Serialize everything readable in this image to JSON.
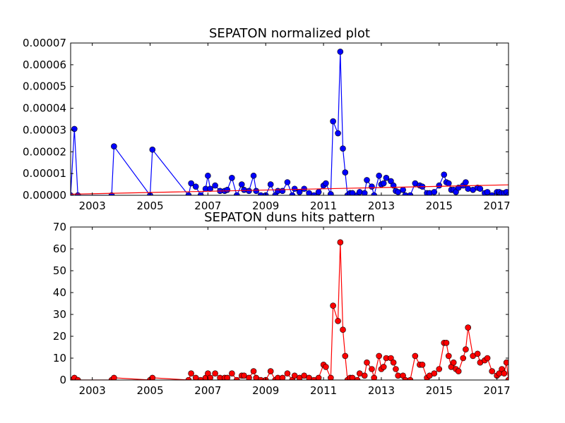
{
  "chart_data": [
    {
      "type": "line",
      "title": "SEPATON normalized plot",
      "xlabel": "",
      "ylabel": "",
      "xlim": [
        2002.25,
        2017.4
      ],
      "ylim": [
        0,
        7e-05
      ],
      "xticks": [
        2003,
        2005,
        2007,
        2009,
        2011,
        2013,
        2015,
        2017
      ],
      "xtick_labels": [
        "2003",
        "2005",
        "2007",
        "2009",
        "2011",
        "2013",
        "2015",
        "2017"
      ],
      "yticks": [
        0,
        1e-05,
        2e-05,
        3e-05,
        4e-05,
        5e-05,
        6e-05,
        7e-05
      ],
      "ytick_labels": [
        "0.00000",
        "0.00001",
        "0.00002",
        "0.00003",
        "0.00004",
        "0.00005",
        "0.00006",
        "0.00007"
      ],
      "grid": false,
      "legend": "none",
      "series": [
        {
          "color": "#0000ff",
          "marker": "circle",
          "x": [
            2002.25,
            2002.38,
            2002.5,
            2003.67,
            2003.75,
            2005.0,
            2005.08,
            2006.33,
            2006.42,
            2006.58,
            2006.75,
            2006.92,
            2007.0,
            2007.08,
            2007.25,
            2007.42,
            2007.58,
            2007.67,
            2007.83,
            2008.0,
            2008.17,
            2008.25,
            2008.42,
            2008.58,
            2008.67,
            2008.83,
            2009.0,
            2009.17,
            2009.33,
            2009.42,
            2009.58,
            2009.75,
            2009.92,
            2010.0,
            2010.17,
            2010.33,
            2010.5,
            2010.67,
            2010.83,
            2011.0,
            2011.08,
            2011.25,
            2011.33,
            2011.5,
            2011.58,
            2011.67,
            2011.75,
            2011.83,
            2011.92,
            2012.0,
            2012.17,
            2012.25,
            2012.42,
            2012.5,
            2012.67,
            2012.75,
            2012.92,
            2013.0,
            2013.08,
            2013.17,
            2013.33,
            2013.42,
            2013.5,
            2013.58,
            2013.75,
            2013.83,
            2014.0,
            2014.17,
            2014.33,
            2014.42,
            2014.58,
            2014.67,
            2014.83,
            2015.0,
            2015.17,
            2015.25,
            2015.33,
            2015.42,
            2015.5,
            2015.58,
            2015.67,
            2015.83,
            2015.92,
            2016.0,
            2016.17,
            2016.33,
            2016.42,
            2016.58,
            2016.67,
            2016.83,
            2017.0,
            2017.08,
            2017.17,
            2017.25,
            2017.33,
            2017.4
          ],
          "y": [
            0,
            3.05e-05,
            0,
            0,
            2.25e-05,
            0,
            2.1e-05,
            0,
            5.5e-06,
            4e-06,
            0,
            3e-06,
            9e-06,
            3e-06,
            4.5e-06,
            2e-06,
            2e-06,
            2.5e-06,
            8e-06,
            0,
            5e-06,
            2.5e-06,
            2e-06,
            9e-06,
            2e-06,
            0,
            0,
            5e-06,
            0,
            2e-06,
            2e-06,
            6e-06,
            0,
            3e-06,
            1.5e-06,
            3e-06,
            1e-06,
            0,
            1.5e-06,
            4.5e-06,
            5.5e-06,
            5e-07,
            3.4e-05,
            2.85e-05,
            6.6e-05,
            2.15e-05,
            1.05e-05,
            0,
            1e-06,
            1e-06,
            0,
            1.5e-06,
            1e-06,
            7e-06,
            4e-06,
            0,
            9e-06,
            5e-06,
            5.5e-06,
            8e-06,
            6.5e-06,
            4.5e-06,
            2e-06,
            1.5e-06,
            2.5e-06,
            0,
            0,
            5.5e-06,
            4.5e-06,
            4e-06,
            1e-06,
            1e-06,
            1.5e-06,
            4.5e-06,
            9.5e-06,
            6e-06,
            5.5e-06,
            2.5e-06,
            2.5e-06,
            1.5e-06,
            3.5e-06,
            4.5e-06,
            6e-06,
            3e-06,
            2.5e-06,
            3.5e-06,
            3e-06,
            1e-06,
            1.5e-06,
            0,
            1.5e-06,
            1.5e-06,
            1e-06,
            1e-06,
            1.5e-06,
            0
          ]
        },
        {
          "color": "#ff0000",
          "marker": "none",
          "x": [
            2002.25,
            2017.4
          ],
          "y": [
            5e-07,
            4.8e-06
          ]
        }
      ]
    },
    {
      "type": "line",
      "title": "SEPATON duns hits pattern",
      "xlabel": "",
      "ylabel": "",
      "xlim": [
        2002.25,
        2017.4
      ],
      "ylim": [
        0,
        70
      ],
      "xticks": [
        2003,
        2005,
        2007,
        2009,
        2011,
        2013,
        2015,
        2017
      ],
      "xtick_labels": [
        "2003",
        "2005",
        "2007",
        "2009",
        "2011",
        "2013",
        "2015",
        "2017"
      ],
      "yticks": [
        0,
        10,
        20,
        30,
        40,
        50,
        60,
        70
      ],
      "ytick_labels": [
        "0",
        "10",
        "20",
        "30",
        "40",
        "50",
        "60",
        "70"
      ],
      "grid": false,
      "legend": "none",
      "series": [
        {
          "color": "#ff0000",
          "marker": "circle",
          "x": [
            2002.25,
            2002.38,
            2002.5,
            2003.67,
            2003.75,
            2005.0,
            2005.08,
            2006.33,
            2006.42,
            2006.58,
            2006.75,
            2006.92,
            2007.0,
            2007.08,
            2007.25,
            2007.42,
            2007.58,
            2007.67,
            2007.83,
            2008.0,
            2008.17,
            2008.25,
            2008.42,
            2008.58,
            2008.67,
            2008.83,
            2009.0,
            2009.17,
            2009.33,
            2009.42,
            2009.58,
            2009.75,
            2009.92,
            2010.0,
            2010.17,
            2010.33,
            2010.5,
            2010.67,
            2010.83,
            2011.0,
            2011.08,
            2011.25,
            2011.33,
            2011.5,
            2011.58,
            2011.67,
            2011.75,
            2011.83,
            2011.92,
            2012.0,
            2012.17,
            2012.25,
            2012.42,
            2012.5,
            2012.67,
            2012.75,
            2012.92,
            2013.0,
            2013.08,
            2013.17,
            2013.33,
            2013.42,
            2013.5,
            2013.58,
            2013.75,
            2013.83,
            2014.0,
            2014.17,
            2014.33,
            2014.42,
            2014.58,
            2014.67,
            2014.83,
            2015.0,
            2015.17,
            2015.25,
            2015.33,
            2015.42,
            2015.5,
            2015.58,
            2015.67,
            2015.83,
            2015.92,
            2016.0,
            2016.17,
            2016.33,
            2016.42,
            2016.58,
            2016.67,
            2016.83,
            2017.0,
            2017.08,
            2017.17,
            2017.25,
            2017.33,
            2017.4
          ],
          "y": [
            0,
            1,
            0,
            0,
            1,
            0,
            1,
            0,
            3,
            1,
            0,
            1,
            3,
            1,
            3,
            1,
            1,
            1,
            3,
            0,
            2,
            2,
            1,
            4,
            1,
            0,
            0,
            4,
            0,
            1,
            1,
            3,
            0,
            2,
            1,
            2,
            1,
            0,
            1,
            7,
            6,
            1,
            34,
            27,
            63,
            23,
            11,
            0,
            1,
            1,
            0,
            3,
            2,
            8,
            5,
            1,
            11,
            5,
            6,
            10,
            10,
            8,
            5,
            2,
            2,
            0,
            0,
            11,
            7,
            7,
            1,
            2,
            3,
            5,
            17,
            17,
            11,
            6,
            8,
            5,
            4,
            10,
            14,
            24,
            11,
            12,
            8,
            9,
            10,
            4,
            2,
            3,
            5,
            3,
            8,
            0
          ]
        }
      ]
    }
  ]
}
